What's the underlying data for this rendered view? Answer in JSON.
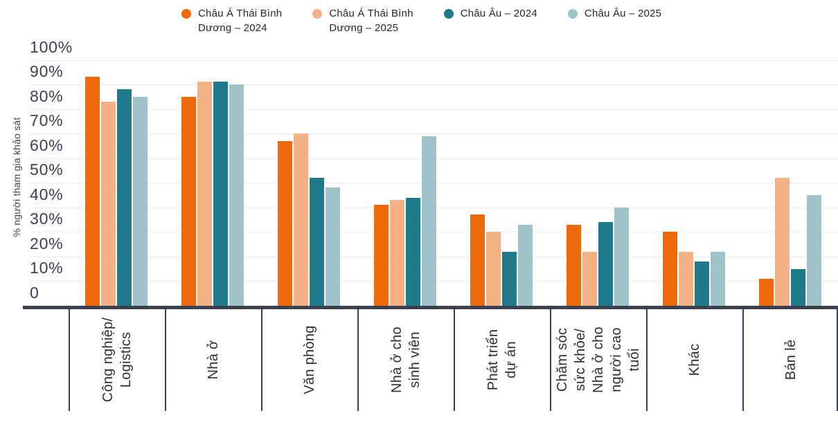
{
  "legend": {
    "items": [
      {
        "label_lines": [
          "Châu Á Thái Bình",
          "Dương – 2024"
        ],
        "color": "#ec6a0b",
        "marker": "circle"
      },
      {
        "label_lines": [
          "Châu Á Thái Bình",
          "Dương – 2025"
        ],
        "color": "#f3b185",
        "marker": "circle"
      },
      {
        "label_lines": [
          "Châu Âu – 2024"
        ],
        "color": "#1f7a8c",
        "marker": "circle"
      },
      {
        "label_lines": [
          "Châu Âu – 2025"
        ],
        "color": "#9ec4ca",
        "marker": "circle"
      }
    ]
  },
  "chart_data": {
    "type": "bar",
    "title": "",
    "xlabel": "",
    "ylabel": "% người tham gia khảo sát",
    "ylim": [
      0,
      100
    ],
    "ytick_values": [
      100,
      90,
      80,
      70,
      60,
      50,
      40,
      30,
      20,
      10,
      0
    ],
    "ytick_labels": [
      "100%",
      "90%",
      "80%",
      "70%",
      "60%",
      "50%",
      "40%",
      "30%",
      "20%",
      "10%",
      "0"
    ],
    "grid": true,
    "legend_position": "top",
    "categories": [
      "Công nghiệp/ Logistics",
      "Nhà ở",
      "Văn phòng",
      "Nhà ở cho sinh viên",
      "Phát triển dự án",
      "Chăm sóc sức khỏe/ Nhà ở cho người cao tuổi",
      "Khác",
      "Bán lẻ"
    ],
    "category_label_lines": [
      [
        "Công nghiệp/",
        "Logistics"
      ],
      [
        "Nhà ở"
      ],
      [
        "Văn phòng"
      ],
      [
        "Nhà ở cho",
        "sinh viên"
      ],
      [
        "Phát triển",
        "dự án"
      ],
      [
        "Chăm sóc",
        "sức khỏe/",
        "Nhà ở cho",
        "người cao",
        "tuổi"
      ],
      [
        "Khác"
      ],
      [
        "Bán lẻ"
      ]
    ],
    "series": [
      {
        "name": "Châu Á Thái Bình Dương – 2024",
        "color": "#ec6a0b",
        "values": [
          93,
          85,
          67,
          41,
          37,
          33,
          30,
          11
        ]
      },
      {
        "name": "Châu Á Thái Bình Dương – 2025",
        "color": "#f3b185",
        "values": [
          83,
          91,
          70,
          43,
          30,
          22,
          22,
          52
        ]
      },
      {
        "name": "Châu Âu – 2024",
        "color": "#1f7a8c",
        "values": [
          88,
          91,
          52,
          44,
          22,
          34,
          18,
          15
        ]
      },
      {
        "name": "Châu Âu – 2025",
        "color": "#9ec4ca",
        "values": [
          85,
          90,
          48,
          69,
          33,
          40,
          22,
          45
        ]
      }
    ]
  },
  "style": {
    "axis_color": "#3b3f4e",
    "grid_color": "#ececef",
    "tick_text_color": "#3b4056",
    "category_text_color": "#2e2f34",
    "legend_text_color": "#26262c",
    "background": "#ffffff"
  }
}
